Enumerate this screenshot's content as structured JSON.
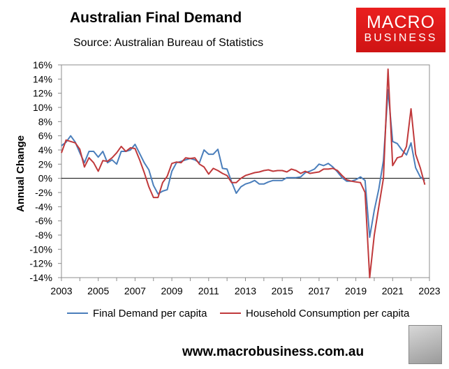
{
  "header": {
    "title": "Australian Final Demand",
    "subtitle": "Source: Australian Bureau of Statistics"
  },
  "logo": {
    "line1": "MACRO",
    "line2": "BUSINESS"
  },
  "footer": {
    "url": "www.macrobusiness.com.au"
  },
  "chart_data": {
    "type": "line",
    "ylabel": "Annual Change",
    "xlim": [
      2003,
      2023
    ],
    "ylim": [
      -14,
      16
    ],
    "yticks": [
      16,
      14,
      12,
      10,
      8,
      6,
      4,
      2,
      0,
      -2,
      -4,
      -6,
      -8,
      -10,
      -12,
      -14
    ],
    "ytick_labels": [
      "16%",
      "14%",
      "12%",
      "10%",
      "8%",
      "6%",
      "4%",
      "2%",
      "0%",
      "-2%",
      "-4%",
      "-6%",
      "-8%",
      "-10%",
      "-12%",
      "-14%"
    ],
    "xticks": [
      2003,
      2005,
      2007,
      2009,
      2011,
      2013,
      2015,
      2017,
      2019,
      2021,
      2023
    ],
    "xtick_labels": [
      "2003",
      "2005",
      "2007",
      "2009",
      "2011",
      "2013",
      "2015",
      "2017",
      "2019",
      "2021",
      "2023"
    ],
    "grid": false,
    "legend_position": "bottom",
    "series": [
      {
        "name": "Final Demand per capita",
        "color": "#4a7ebb",
        "points": [
          [
            2003.0,
            4.6
          ],
          [
            2003.25,
            5.1
          ],
          [
            2003.5,
            6.0
          ],
          [
            2003.75,
            5.1
          ],
          [
            2004.0,
            3.6
          ],
          [
            2004.25,
            2.2
          ],
          [
            2004.5,
            3.8
          ],
          [
            2004.75,
            3.8
          ],
          [
            2005.0,
            3.0
          ],
          [
            2005.25,
            3.8
          ],
          [
            2005.5,
            2.2
          ],
          [
            2005.75,
            2.6
          ],
          [
            2006.0,
            2.0
          ],
          [
            2006.25,
            3.8
          ],
          [
            2006.5,
            3.8
          ],
          [
            2006.75,
            4.0
          ],
          [
            2007.0,
            4.8
          ],
          [
            2007.25,
            3.5
          ],
          [
            2007.5,
            2.2
          ],
          [
            2007.75,
            1.2
          ],
          [
            2008.0,
            -1.0
          ],
          [
            2008.25,
            -2.2
          ],
          [
            2008.5,
            -1.8
          ],
          [
            2008.75,
            -1.6
          ],
          [
            2009.0,
            1.0
          ],
          [
            2009.25,
            2.2
          ],
          [
            2009.5,
            2.4
          ],
          [
            2009.75,
            2.6
          ],
          [
            2010.0,
            2.8
          ],
          [
            2010.25,
            2.6
          ],
          [
            2010.5,
            2.2
          ],
          [
            2010.75,
            4.0
          ],
          [
            2011.0,
            3.4
          ],
          [
            2011.25,
            3.4
          ],
          [
            2011.5,
            4.1
          ],
          [
            2011.75,
            1.4
          ],
          [
            2012.0,
            1.3
          ],
          [
            2012.25,
            -0.5
          ],
          [
            2012.5,
            -2.1
          ],
          [
            2012.75,
            -1.2
          ],
          [
            2013.0,
            -0.8
          ],
          [
            2013.25,
            -0.6
          ],
          [
            2013.5,
            -0.3
          ],
          [
            2013.75,
            -0.8
          ],
          [
            2014.0,
            -0.8
          ],
          [
            2014.25,
            -0.5
          ],
          [
            2014.5,
            -0.3
          ],
          [
            2014.75,
            -0.3
          ],
          [
            2015.0,
            -0.3
          ],
          [
            2015.25,
            0.1
          ],
          [
            2015.5,
            0.1
          ],
          [
            2015.75,
            0.1
          ],
          [
            2016.0,
            0.2
          ],
          [
            2016.25,
            0.8
          ],
          [
            2016.5,
            1.0
          ],
          [
            2016.75,
            1.3
          ],
          [
            2017.0,
            2.0
          ],
          [
            2017.25,
            1.8
          ],
          [
            2017.5,
            2.1
          ],
          [
            2017.75,
            1.6
          ],
          [
            2018.0,
            0.9
          ],
          [
            2018.25,
            0.1
          ],
          [
            2018.5,
            -0.4
          ],
          [
            2018.75,
            -0.4
          ],
          [
            2019.0,
            -0.2
          ],
          [
            2019.25,
            0.2
          ],
          [
            2019.5,
            -0.3
          ],
          [
            2019.75,
            -8.3
          ],
          [
            2020.0,
            -4.5
          ],
          [
            2020.25,
            -1.5
          ],
          [
            2020.5,
            2.5
          ],
          [
            2020.75,
            12.5
          ],
          [
            2021.0,
            5.2
          ],
          [
            2021.25,
            4.9
          ],
          [
            2021.5,
            4.0
          ],
          [
            2021.75,
            3.3
          ],
          [
            2022.0,
            5.0
          ],
          [
            2022.25,
            1.5
          ],
          [
            2022.5,
            0.2
          ],
          [
            2022.75,
            -0.3
          ]
        ]
      },
      {
        "name": "Household Consumption per capita",
        "color": "#c0393b",
        "points": [
          [
            2003.0,
            3.6
          ],
          [
            2003.25,
            5.4
          ],
          [
            2003.5,
            5.2
          ],
          [
            2003.75,
            5.0
          ],
          [
            2004.0,
            4.1
          ],
          [
            2004.25,
            1.6
          ],
          [
            2004.5,
            2.9
          ],
          [
            2004.75,
            2.2
          ],
          [
            2005.0,
            1.0
          ],
          [
            2005.25,
            2.5
          ],
          [
            2005.5,
            2.4
          ],
          [
            2005.75,
            2.9
          ],
          [
            2006.0,
            3.6
          ],
          [
            2006.25,
            4.5
          ],
          [
            2006.5,
            3.8
          ],
          [
            2006.75,
            4.3
          ],
          [
            2007.0,
            4.2
          ],
          [
            2007.25,
            2.6
          ],
          [
            2007.5,
            0.8
          ],
          [
            2007.75,
            -1.2
          ],
          [
            2008.0,
            -2.7
          ],
          [
            2008.25,
            -2.7
          ],
          [
            2008.5,
            -0.6
          ],
          [
            2008.75,
            0.3
          ],
          [
            2009.0,
            2.1
          ],
          [
            2009.25,
            2.3
          ],
          [
            2009.5,
            2.2
          ],
          [
            2009.75,
            2.9
          ],
          [
            2010.0,
            2.8
          ],
          [
            2010.25,
            2.9
          ],
          [
            2010.5,
            2.0
          ],
          [
            2010.75,
            1.6
          ],
          [
            2011.0,
            0.6
          ],
          [
            2011.25,
            1.4
          ],
          [
            2011.5,
            1.1
          ],
          [
            2011.75,
            0.7
          ],
          [
            2012.0,
            0.4
          ],
          [
            2012.25,
            -0.6
          ],
          [
            2012.5,
            -0.6
          ],
          [
            2012.75,
            0.0
          ],
          [
            2013.0,
            0.4
          ],
          [
            2013.25,
            0.6
          ],
          [
            2013.5,
            0.8
          ],
          [
            2013.75,
            0.9
          ],
          [
            2014.0,
            1.1
          ],
          [
            2014.25,
            1.2
          ],
          [
            2014.5,
            1.0
          ],
          [
            2014.75,
            1.1
          ],
          [
            2015.0,
            1.1
          ],
          [
            2015.25,
            0.9
          ],
          [
            2015.5,
            1.3
          ],
          [
            2015.75,
            1.1
          ],
          [
            2016.0,
            0.7
          ],
          [
            2016.25,
            1.0
          ],
          [
            2016.5,
            0.7
          ],
          [
            2016.75,
            0.8
          ],
          [
            2017.0,
            0.9
          ],
          [
            2017.25,
            1.3
          ],
          [
            2017.5,
            1.3
          ],
          [
            2017.75,
            1.4
          ],
          [
            2018.0,
            1.1
          ],
          [
            2018.25,
            0.4
          ],
          [
            2018.5,
            -0.2
          ],
          [
            2018.75,
            -0.4
          ],
          [
            2019.0,
            -0.5
          ],
          [
            2019.25,
            -0.6
          ],
          [
            2019.5,
            -2.0
          ],
          [
            2019.75,
            -14.0
          ],
          [
            2020.0,
            -8.0
          ],
          [
            2020.25,
            -4.0
          ],
          [
            2020.5,
            0.0
          ],
          [
            2020.75,
            15.4
          ],
          [
            2021.0,
            1.8
          ],
          [
            2021.25,
            2.9
          ],
          [
            2021.5,
            3.1
          ],
          [
            2021.75,
            4.5
          ],
          [
            2022.0,
            9.8
          ],
          [
            2022.25,
            3.4
          ],
          [
            2022.5,
            1.5
          ],
          [
            2022.75,
            -0.9
          ]
        ]
      }
    ]
  }
}
